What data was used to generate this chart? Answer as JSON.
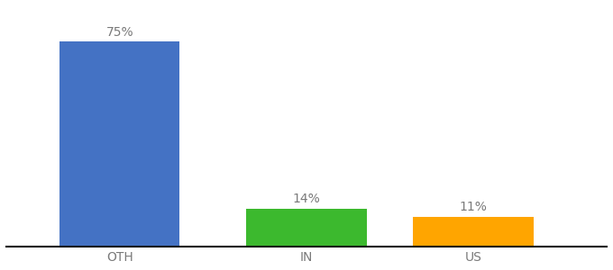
{
  "categories": [
    "OTH",
    "IN",
    "US"
  ],
  "values": [
    75,
    14,
    11
  ],
  "bar_colors": [
    "#4472C4",
    "#3CB92E",
    "#FFA500"
  ],
  "value_labels": [
    "75%",
    "14%",
    "11%"
  ],
  "label_color": "#7a7a7a",
  "background_color": "#ffffff",
  "ylim": [
    0,
    88
  ],
  "bar_width": 0.18,
  "label_fontsize": 10,
  "tick_fontsize": 10,
  "spine_color": "#111111",
  "x_positions": [
    0.22,
    0.5,
    0.75
  ]
}
